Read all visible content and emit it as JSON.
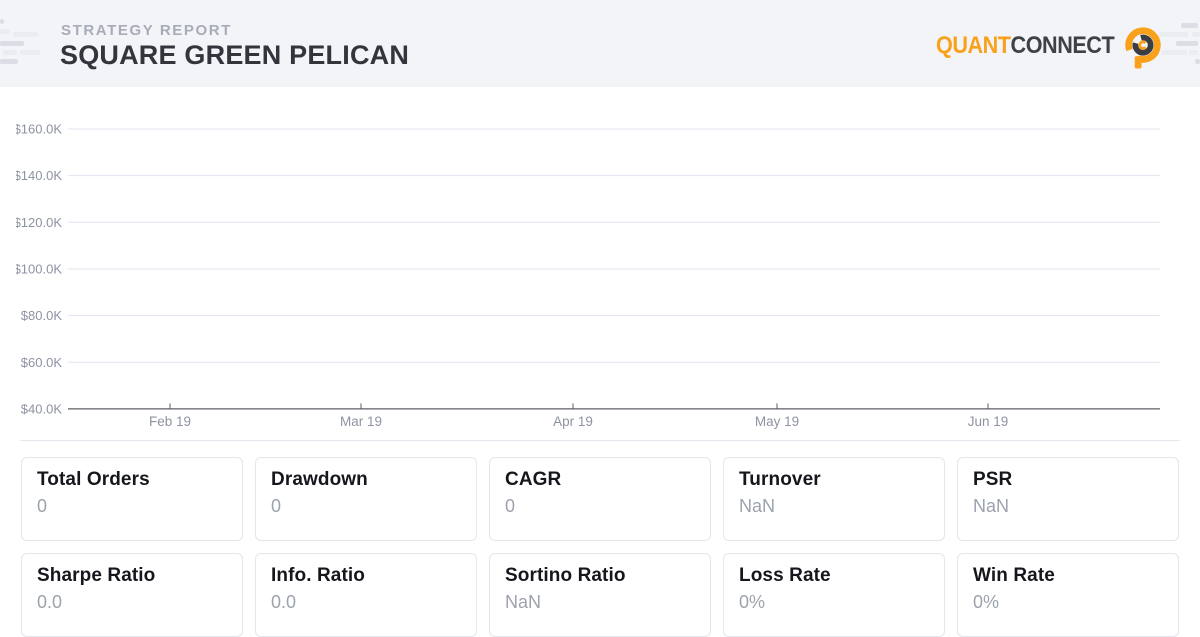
{
  "header": {
    "eyebrow": "STRATEGY REPORT",
    "title": "SQUARE GREEN PELICAN"
  },
  "logo": {
    "text_primary": "QUANT",
    "text_secondary": "CONNECT"
  },
  "colors": {
    "accent_orange": "#F9A11B",
    "logo_dark": "#3F4145",
    "header_bg": "#F2F4F8",
    "grid_line": "#E0E5F0",
    "axis_line": "#5C5F66",
    "axis_text": "#8D93A1"
  },
  "chart_data": {
    "type": "line",
    "title": "",
    "xlabel": "",
    "ylabel": "",
    "x_tick_labels": [
      "Feb 19",
      "Mar 19",
      "Apr 19",
      "May 19",
      "Jun 19"
    ],
    "y_tick_labels": [
      "$160.0K",
      "$140.0K",
      "$120.0K",
      "$100.0K",
      "$80.0K",
      "$60.0K",
      "$40.0K"
    ],
    "y_tick_values": [
      160000,
      140000,
      120000,
      100000,
      80000,
      60000,
      40000
    ],
    "ylim": [
      40000,
      168000
    ],
    "grid": true,
    "legend": false,
    "series": []
  },
  "stats": {
    "rows": [
      [
        {
          "label": "Total Orders",
          "value": "0"
        },
        {
          "label": "Drawdown",
          "value": "0"
        },
        {
          "label": "CAGR",
          "value": "0"
        },
        {
          "label": "Turnover",
          "value": "NaN"
        },
        {
          "label": "PSR",
          "value": "NaN"
        }
      ],
      [
        {
          "label": "Sharpe Ratio",
          "value": "0.0"
        },
        {
          "label": "Info. Ratio",
          "value": "0.0"
        },
        {
          "label": "Sortino Ratio",
          "value": "NaN"
        },
        {
          "label": "Loss Rate",
          "value": "0%"
        },
        {
          "label": "Win Rate",
          "value": "0%"
        }
      ]
    ]
  }
}
